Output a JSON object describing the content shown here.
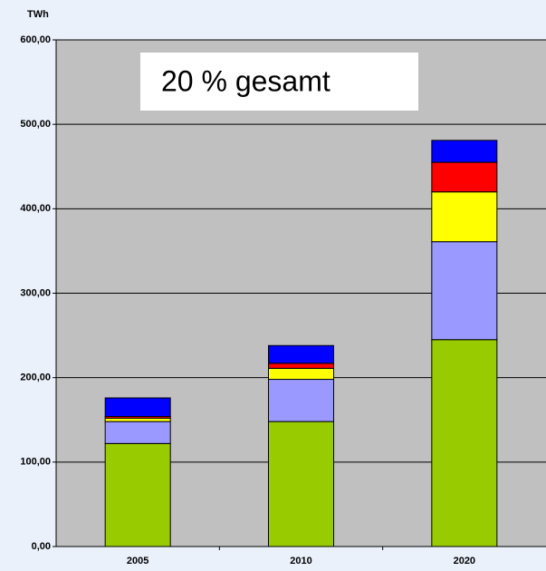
{
  "chart_data": {
    "type": "stacked_bar",
    "y_label": "TWh",
    "annotation": "20 % gesamt",
    "categories": [
      "2005",
      "2010",
      "2020"
    ],
    "series": [
      {
        "color": "#99cc00",
        "values": [
          122,
          148,
          245
        ]
      },
      {
        "color": "#9999ff",
        "values": [
          26,
          50,
          116
        ]
      },
      {
        "color": "#ffff00",
        "values": [
          4,
          13,
          59
        ]
      },
      {
        "color": "#ff0000",
        "values": [
          2,
          6,
          35
        ]
      },
      {
        "color": "#0000ff",
        "values": [
          22,
          21,
          26
        ]
      }
    ],
    "ylim": [
      0,
      600
    ],
    "yticks": [
      {
        "value": 0,
        "label": "0,00"
      },
      {
        "value": 100,
        "label": "100,00"
      },
      {
        "value": 200,
        "label": "200,00"
      },
      {
        "value": 300,
        "label": "300,00"
      },
      {
        "value": 400,
        "label": "400,00"
      },
      {
        "value": 500,
        "label": "500,00"
      },
      {
        "value": 600,
        "label": "600,00"
      }
    ],
    "grid": true
  }
}
